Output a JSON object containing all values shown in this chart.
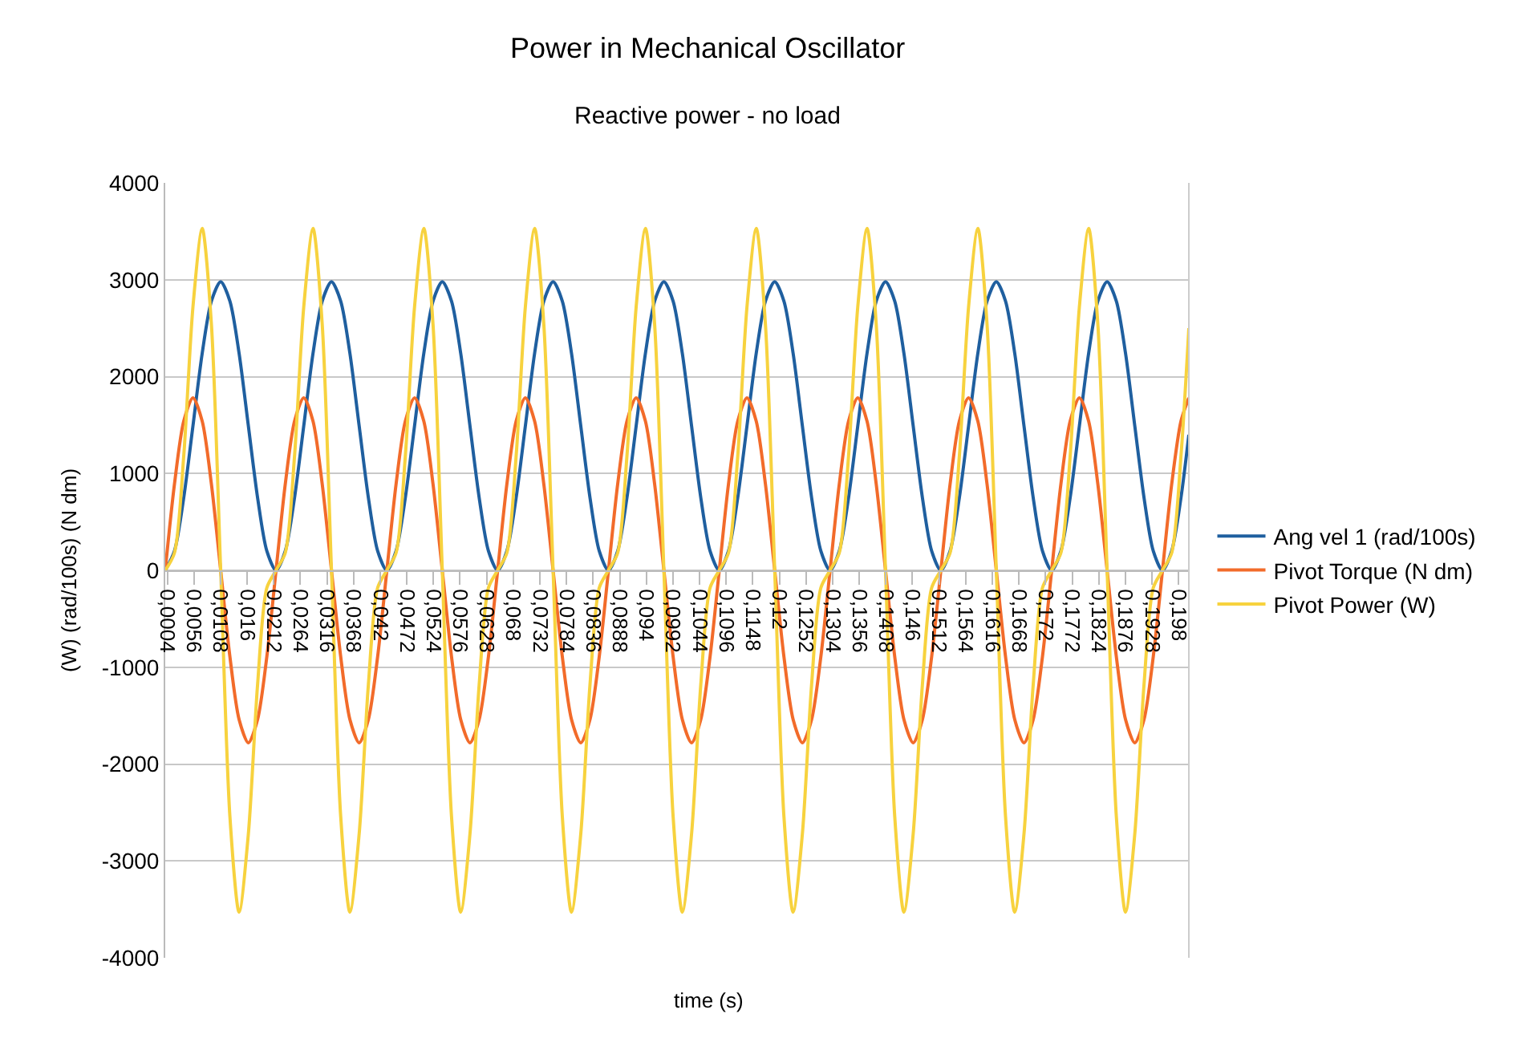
{
  "chart_data": {
    "type": "line",
    "title": "Power in Mechanical Oscillator",
    "subtitle": "Reactive power - no load",
    "xlabel": "time (s)",
    "ylabel": "(W) (rad/100s) (N dm)",
    "x": [
      0,
      0.0018,
      0.00361,
      0.00541,
      0.00722,
      0.00902,
      0.01083,
      0.01263,
      0.01443,
      0.01624,
      0.01804,
      0.01985,
      0.02165,
      0.02345,
      0.02526,
      0.02706,
      0.02887,
      0.03067,
      0.03248,
      0.03428,
      0.03608,
      0.03789,
      0.03969,
      0.0415,
      0.0433,
      0.0451,
      0.04691,
      0.04871,
      0.05052,
      0.05232,
      0.05413,
      0.05593,
      0.05773,
      0.05954,
      0.06134,
      0.06315,
      0.06495,
      0.06675,
      0.06856,
      0.07036,
      0.07217,
      0.07397,
      0.07578,
      0.07758,
      0.07938,
      0.08119,
      0.08299,
      0.0848,
      0.0866,
      0.0884,
      0.09021,
      0.09201,
      0.09382,
      0.09562,
      0.09743,
      0.09923,
      0.10103,
      0.10284,
      0.10464,
      0.10645,
      0.10825,
      0.11005,
      0.11186,
      0.11366,
      0.11547,
      0.11727,
      0.11908,
      0.12088,
      0.12268,
      0.12449,
      0.12629,
      0.1281,
      0.1299,
      0.1317,
      0.13351,
      0.13531,
      0.13712,
      0.13892,
      0.14073,
      0.14253,
      0.14433,
      0.14614,
      0.14794,
      0.14975,
      0.15155,
      0.15335,
      0.15516,
      0.15696,
      0.15877,
      0.16057,
      0.16238,
      0.16418,
      0.16598,
      0.16779,
      0.16959,
      0.1714,
      0.1732,
      0.175,
      0.17681,
      0.17861,
      0.18042,
      0.18222,
      0.18403,
      0.18583,
      0.18763,
      0.18944,
      0.19124,
      0.19305,
      0.19485,
      0.19665,
      0.19846,
      0.2
    ],
    "series": [
      {
        "name": "Ang vel 1 (rad/100s)",
        "color": "#1f5f9f",
        "values": [
          0,
          200,
          750,
          1490,
          2240,
          2780,
          2980,
          2780,
          2240,
          1490,
          750,
          200,
          0,
          200,
          750,
          1490,
          2240,
          2780,
          2980,
          2780,
          2240,
          1490,
          750,
          200,
          0,
          200,
          750,
          1490,
          2240,
          2780,
          2980,
          2780,
          2240,
          1490,
          750,
          200,
          0,
          200,
          750,
          1490,
          2240,
          2780,
          2980,
          2780,
          2240,
          1490,
          750,
          200,
          0,
          200,
          750,
          1490,
          2240,
          2780,
          2980,
          2780,
          2240,
          1490,
          750,
          200,
          0,
          200,
          750,
          1490,
          2240,
          2780,
          2980,
          2780,
          2240,
          1490,
          750,
          200,
          0,
          200,
          750,
          1490,
          2240,
          2780,
          2980,
          2780,
          2240,
          1490,
          750,
          200,
          0,
          200,
          750,
          1490,
          2240,
          2780,
          2980,
          2780,
          2240,
          1490,
          750,
          200,
          0,
          200,
          750,
          1490,
          2240,
          2780,
          2980,
          2780,
          2240,
          1490,
          750,
          200,
          0,
          200,
          750,
          1400
        ]
      },
      {
        "name": "Pivot Torque (N dm)",
        "color": "#f26b2a",
        "values": [
          0,
          890,
          1540,
          1780,
          1540,
          890,
          0,
          -890,
          -1540,
          -1780,
          -1540,
          -890,
          0,
          890,
          1540,
          1780,
          1540,
          890,
          0,
          -890,
          -1540,
          -1780,
          -1540,
          -890,
          0,
          890,
          1540,
          1780,
          1540,
          890,
          0,
          -890,
          -1540,
          -1780,
          -1540,
          -890,
          0,
          890,
          1540,
          1780,
          1540,
          890,
          0,
          -890,
          -1540,
          -1780,
          -1540,
          -890,
          0,
          890,
          1540,
          1780,
          1540,
          890,
          0,
          -890,
          -1540,
          -1780,
          -1540,
          -890,
          0,
          890,
          1540,
          1780,
          1540,
          890,
          0,
          -890,
          -1540,
          -1780,
          -1540,
          -890,
          0,
          890,
          1540,
          1780,
          1540,
          890,
          0,
          -890,
          -1540,
          -1780,
          -1540,
          -890,
          0,
          890,
          1540,
          1780,
          1540,
          890,
          0,
          -890,
          -1540,
          -1780,
          -1540,
          -890,
          0,
          890,
          1540,
          1780,
          1540,
          890,
          0,
          -890,
          -1540,
          -1780,
          -1540,
          -890,
          0,
          890,
          1540,
          1780
        ]
      },
      {
        "name": "Pivot Power (W)",
        "color": "#f7d23e",
        "values": [
          0,
          180,
          1180,
          2720,
          3530,
          2540,
          0,
          -2540,
          -3530,
          -2720,
          -1180,
          -180,
          0,
          180,
          1180,
          2720,
          3530,
          2540,
          0,
          -2540,
          -3530,
          -2720,
          -1180,
          -180,
          0,
          180,
          1180,
          2720,
          3530,
          2540,
          0,
          -2540,
          -3530,
          -2720,
          -1180,
          -180,
          0,
          180,
          1180,
          2720,
          3530,
          2540,
          0,
          -2540,
          -3530,
          -2720,
          -1180,
          -180,
          0,
          180,
          1180,
          2720,
          3530,
          2540,
          0,
          -2540,
          -3530,
          -2720,
          -1180,
          -180,
          0,
          180,
          1180,
          2720,
          3530,
          2540,
          0,
          -2540,
          -3530,
          -2720,
          -1180,
          -180,
          0,
          180,
          1180,
          2720,
          3530,
          2540,
          0,
          -2540,
          -3530,
          -2720,
          -1180,
          -180,
          0,
          180,
          1180,
          2720,
          3530,
          2540,
          0,
          -2540,
          -3530,
          -2720,
          -1180,
          -180,
          0,
          180,
          1180,
          2720,
          3530,
          2540,
          0,
          -2540,
          -3530,
          -2720,
          -1180,
          -180,
          0,
          180,
          1180,
          2500
        ]
      }
    ],
    "xlim": [
      0,
      0.2
    ],
    "xticks": [
      {
        "value": 0.0004,
        "label": "0,0004"
      },
      {
        "value": 0.0056,
        "label": "0,0056"
      },
      {
        "value": 0.0108,
        "label": "0,0108"
      },
      {
        "value": 0.016,
        "label": "0,016"
      },
      {
        "value": 0.0212,
        "label": "0,0212"
      },
      {
        "value": 0.0264,
        "label": "0,0264"
      },
      {
        "value": 0.0316,
        "label": "0,0316"
      },
      {
        "value": 0.0368,
        "label": "0,0368"
      },
      {
        "value": 0.042,
        "label": "0,042"
      },
      {
        "value": 0.0472,
        "label": "0,0472"
      },
      {
        "value": 0.0524,
        "label": "0,0524"
      },
      {
        "value": 0.0576,
        "label": "0,0576"
      },
      {
        "value": 0.0628,
        "label": "0,0628"
      },
      {
        "value": 0.068,
        "label": "0,068"
      },
      {
        "value": 0.0732,
        "label": "0,0732"
      },
      {
        "value": 0.0784,
        "label": "0,0784"
      },
      {
        "value": 0.0836,
        "label": "0,0836"
      },
      {
        "value": 0.0888,
        "label": "0,0888"
      },
      {
        "value": 0.094,
        "label": "0,094"
      },
      {
        "value": 0.0992,
        "label": "0,0992"
      },
      {
        "value": 0.1044,
        "label": "0,1044"
      },
      {
        "value": 0.1096,
        "label": "0,1096"
      },
      {
        "value": 0.1148,
        "label": "0,1148"
      },
      {
        "value": 0.12,
        "label": "0,12"
      },
      {
        "value": 0.1252,
        "label": "0,1252"
      },
      {
        "value": 0.1304,
        "label": "0,1304"
      },
      {
        "value": 0.1356,
        "label": "0,1356"
      },
      {
        "value": 0.1408,
        "label": "0,1408"
      },
      {
        "value": 0.146,
        "label": "0,146"
      },
      {
        "value": 0.1512,
        "label": "0,1512"
      },
      {
        "value": 0.1564,
        "label": "0,1564"
      },
      {
        "value": 0.1616,
        "label": "0,1616"
      },
      {
        "value": 0.1668,
        "label": "0,1668"
      },
      {
        "value": 0.172,
        "label": "0,172"
      },
      {
        "value": 0.1772,
        "label": "0,1772"
      },
      {
        "value": 0.1824,
        "label": "0,1824"
      },
      {
        "value": 0.1876,
        "label": "0,1876"
      },
      {
        "value": 0.1928,
        "label": "0,1928"
      },
      {
        "value": 0.198,
        "label": "0,198"
      }
    ],
    "ylim": [
      -4000,
      4000
    ],
    "yticks": [
      -4000,
      -3000,
      -2000,
      -1000,
      0,
      1000,
      2000,
      3000,
      4000
    ],
    "grid": "y",
    "legend": "right",
    "marker": "none",
    "line_style": "solid"
  }
}
